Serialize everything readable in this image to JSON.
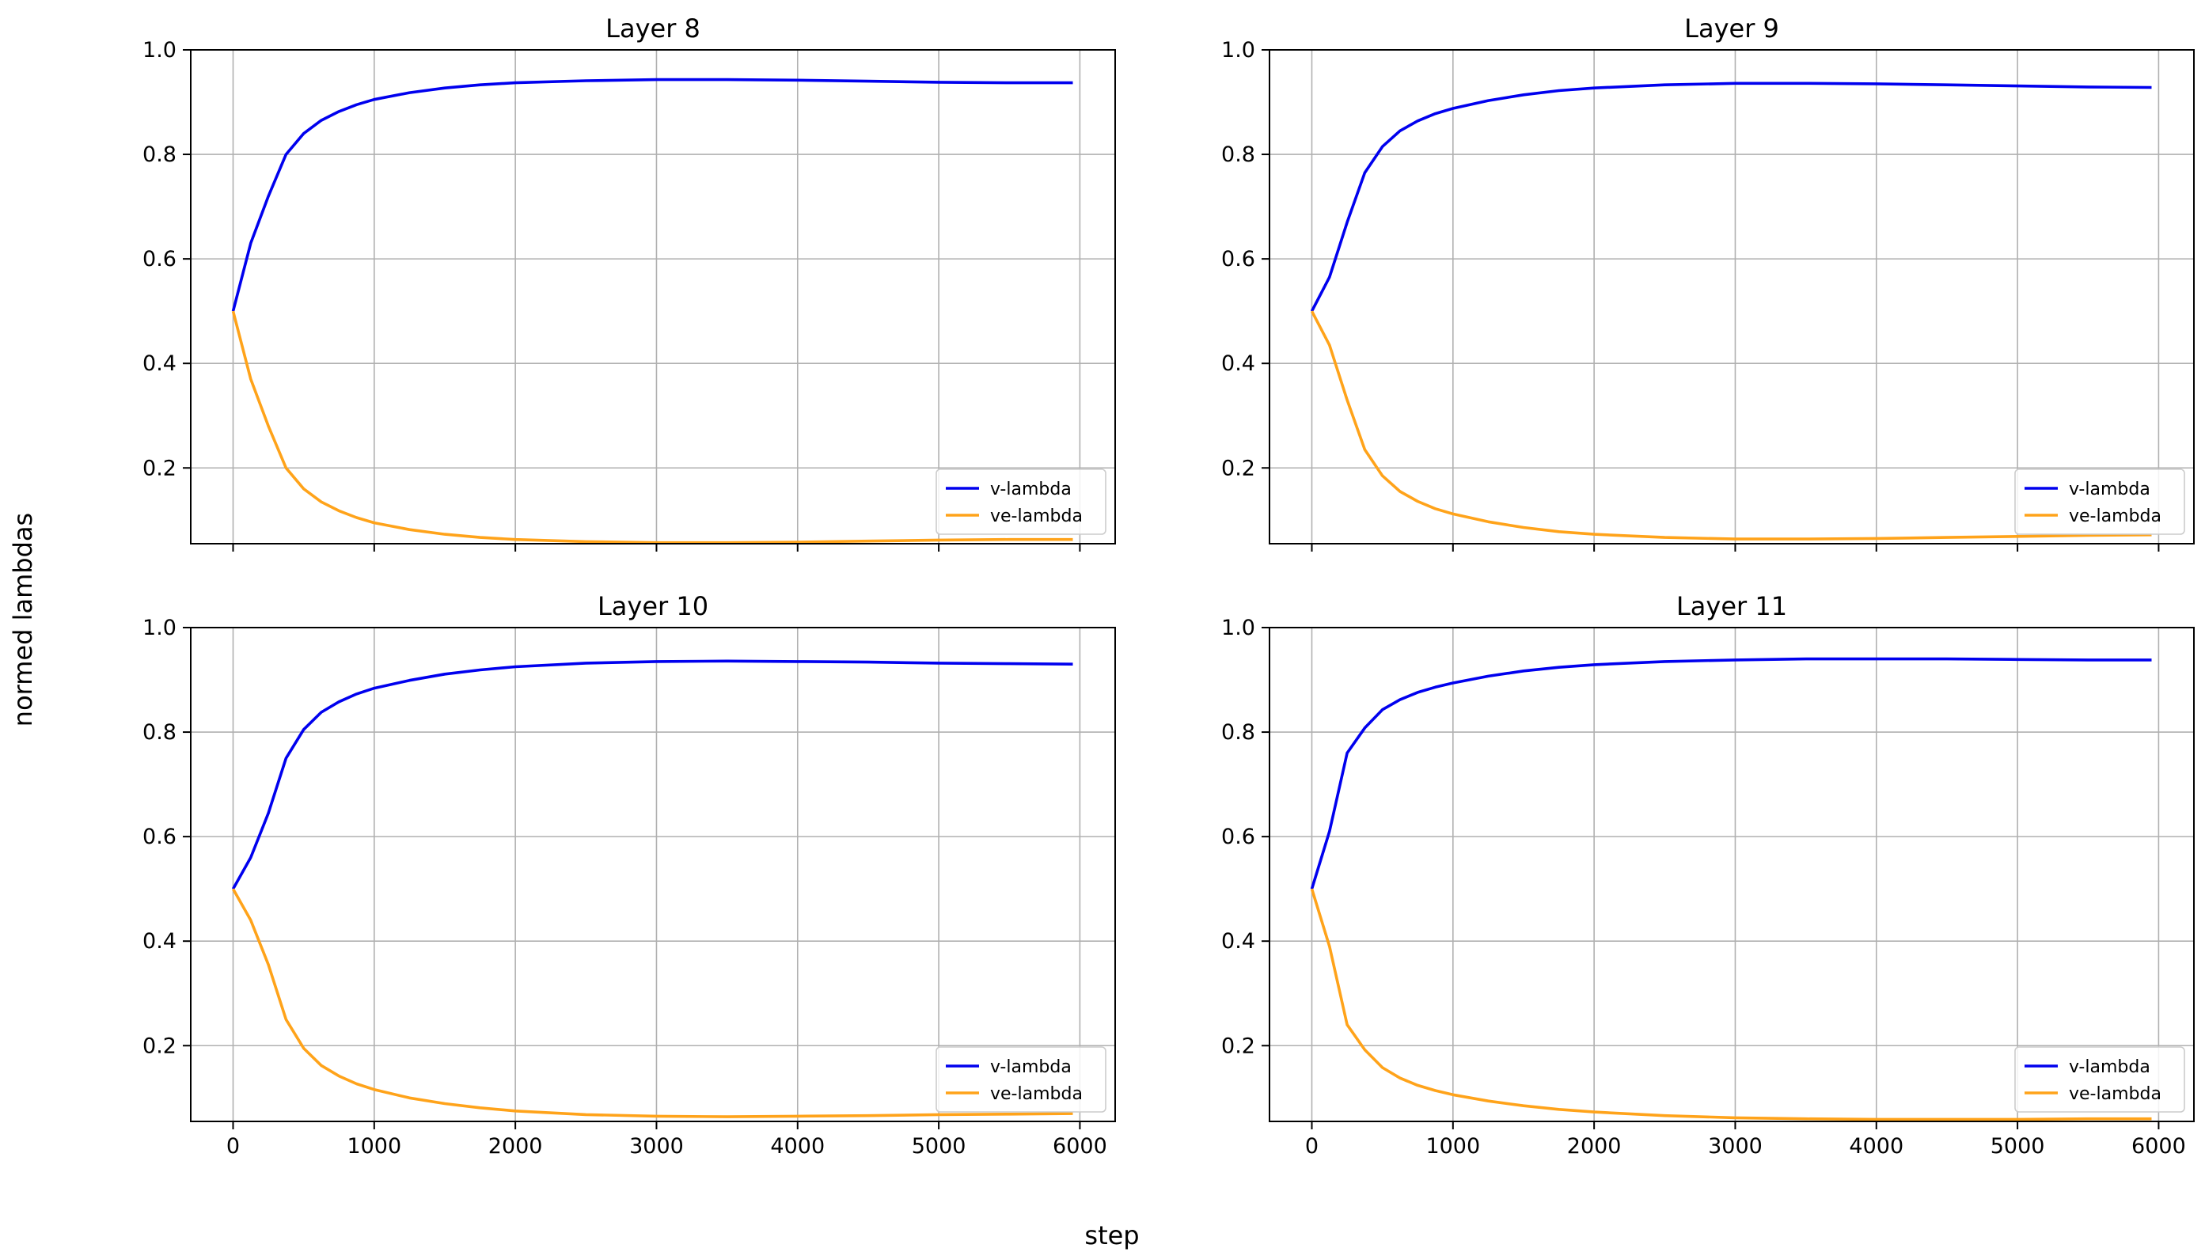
{
  "figure": {
    "xlabel": "step",
    "ylabel": "normed lambdas",
    "colors": {
      "v": "#0000ee",
      "ve": "#ffa31a",
      "grid": "#b0b0b0",
      "axis": "#000000"
    }
  },
  "chart_data": [
    {
      "type": "line",
      "title": "Layer 8",
      "xlim": [
        -300,
        6250
      ],
      "ylim": [
        0.055,
        1.0
      ],
      "xticks": [
        0,
        1000,
        2000,
        3000,
        4000,
        5000,
        6000
      ],
      "yticks": [
        0.2,
        0.4,
        0.6,
        0.8,
        1.0
      ],
      "show_xticklabels": false,
      "grid": true,
      "legend": "lower-right",
      "series": [
        {
          "name": "v-lambda",
          "color": "#0000ee",
          "x": [
            0,
            125,
            250,
            375,
            500,
            625,
            750,
            875,
            1000,
            1250,
            1500,
            1750,
            2000,
            2500,
            3000,
            3500,
            4000,
            4500,
            5000,
            5500,
            5950
          ],
          "y": [
            0.5,
            0.63,
            0.72,
            0.8,
            0.84,
            0.865,
            0.882,
            0.895,
            0.905,
            0.918,
            0.927,
            0.933,
            0.937,
            0.941,
            0.943,
            0.943,
            0.942,
            0.94,
            0.938,
            0.937,
            0.937
          ]
        },
        {
          "name": "ve-lambda",
          "color": "#ffa31a",
          "x": [
            0,
            125,
            250,
            375,
            500,
            625,
            750,
            875,
            1000,
            1250,
            1500,
            1750,
            2000,
            2500,
            3000,
            3500,
            4000,
            4500,
            5000,
            5500,
            5950
          ],
          "y": [
            0.5,
            0.37,
            0.28,
            0.2,
            0.16,
            0.135,
            0.118,
            0.105,
            0.095,
            0.082,
            0.073,
            0.067,
            0.063,
            0.059,
            0.057,
            0.057,
            0.058,
            0.06,
            0.062,
            0.063,
            0.063
          ]
        }
      ]
    },
    {
      "type": "line",
      "title": "Layer 9",
      "xlim": [
        -300,
        6250
      ],
      "ylim": [
        0.055,
        1.0
      ],
      "xticks": [
        0,
        1000,
        2000,
        3000,
        4000,
        5000,
        6000
      ],
      "yticks": [
        0.2,
        0.4,
        0.6,
        0.8,
        1.0
      ],
      "show_xticklabels": false,
      "grid": true,
      "legend": "lower-right",
      "series": [
        {
          "name": "v-lambda",
          "color": "#0000ee",
          "x": [
            0,
            125,
            250,
            375,
            500,
            625,
            750,
            875,
            1000,
            1250,
            1500,
            1750,
            2000,
            2500,
            3000,
            3500,
            4000,
            4500,
            5000,
            5500,
            5950
          ],
          "y": [
            0.5,
            0.565,
            0.67,
            0.765,
            0.815,
            0.845,
            0.864,
            0.878,
            0.888,
            0.903,
            0.914,
            0.922,
            0.927,
            0.933,
            0.936,
            0.936,
            0.935,
            0.933,
            0.931,
            0.929,
            0.928
          ]
        },
        {
          "name": "ve-lambda",
          "color": "#ffa31a",
          "x": [
            0,
            125,
            250,
            375,
            500,
            625,
            750,
            875,
            1000,
            1250,
            1500,
            1750,
            2000,
            2500,
            3000,
            3500,
            4000,
            4500,
            5000,
            5500,
            5950
          ],
          "y": [
            0.5,
            0.435,
            0.33,
            0.235,
            0.185,
            0.155,
            0.136,
            0.122,
            0.112,
            0.097,
            0.086,
            0.078,
            0.073,
            0.067,
            0.064,
            0.064,
            0.065,
            0.067,
            0.069,
            0.071,
            0.072
          ]
        }
      ]
    },
    {
      "type": "line",
      "title": "Layer 10",
      "xlim": [
        -300,
        6250
      ],
      "ylim": [
        0.055,
        1.0
      ],
      "xticks": [
        0,
        1000,
        2000,
        3000,
        4000,
        5000,
        6000
      ],
      "yticks": [
        0.2,
        0.4,
        0.6,
        0.8,
        1.0
      ],
      "show_xticklabels": true,
      "grid": true,
      "legend": "lower-right",
      "series": [
        {
          "name": "v-lambda",
          "color": "#0000ee",
          "x": [
            0,
            125,
            250,
            375,
            500,
            625,
            750,
            875,
            1000,
            1250,
            1500,
            1750,
            2000,
            2500,
            3000,
            3500,
            4000,
            4500,
            5000,
            5500,
            5950
          ],
          "y": [
            0.5,
            0.56,
            0.645,
            0.75,
            0.805,
            0.838,
            0.858,
            0.873,
            0.884,
            0.899,
            0.911,
            0.919,
            0.925,
            0.932,
            0.935,
            0.936,
            0.935,
            0.934,
            0.932,
            0.931,
            0.93
          ]
        },
        {
          "name": "ve-lambda",
          "color": "#ffa31a",
          "x": [
            0,
            125,
            250,
            375,
            500,
            625,
            750,
            875,
            1000,
            1250,
            1500,
            1750,
            2000,
            2500,
            3000,
            3500,
            4000,
            4500,
            5000,
            5500,
            5950
          ],
          "y": [
            0.5,
            0.44,
            0.355,
            0.25,
            0.195,
            0.162,
            0.142,
            0.127,
            0.116,
            0.1,
            0.089,
            0.081,
            0.075,
            0.068,
            0.065,
            0.064,
            0.065,
            0.066,
            0.068,
            0.069,
            0.07
          ]
        }
      ]
    },
    {
      "type": "line",
      "title": "Layer 11",
      "xlim": [
        -300,
        6250
      ],
      "ylim": [
        0.055,
        1.0
      ],
      "xticks": [
        0,
        1000,
        2000,
        3000,
        4000,
        5000,
        6000
      ],
      "yticks": [
        0.2,
        0.4,
        0.6,
        0.8,
        1.0
      ],
      "show_xticklabels": true,
      "grid": true,
      "legend": "lower-right",
      "series": [
        {
          "name": "v-lambda",
          "color": "#0000ee",
          "x": [
            0,
            125,
            250,
            375,
            500,
            625,
            750,
            875,
            1000,
            1250,
            1500,
            1750,
            2000,
            2500,
            3000,
            3500,
            4000,
            4500,
            5000,
            5500,
            5950
          ],
          "y": [
            0.5,
            0.61,
            0.76,
            0.808,
            0.843,
            0.862,
            0.876,
            0.886,
            0.894,
            0.907,
            0.917,
            0.924,
            0.929,
            0.935,
            0.938,
            0.94,
            0.94,
            0.94,
            0.939,
            0.938,
            0.938
          ]
        },
        {
          "name": "ve-lambda",
          "color": "#ffa31a",
          "x": [
            0,
            125,
            250,
            375,
            500,
            625,
            750,
            875,
            1000,
            1250,
            1500,
            1750,
            2000,
            2500,
            3000,
            3500,
            4000,
            4500,
            5000,
            5500,
            5950
          ],
          "y": [
            0.5,
            0.39,
            0.24,
            0.192,
            0.158,
            0.138,
            0.124,
            0.114,
            0.106,
            0.094,
            0.085,
            0.078,
            0.073,
            0.066,
            0.062,
            0.06,
            0.059,
            0.059,
            0.059,
            0.06,
            0.06
          ]
        }
      ]
    }
  ]
}
